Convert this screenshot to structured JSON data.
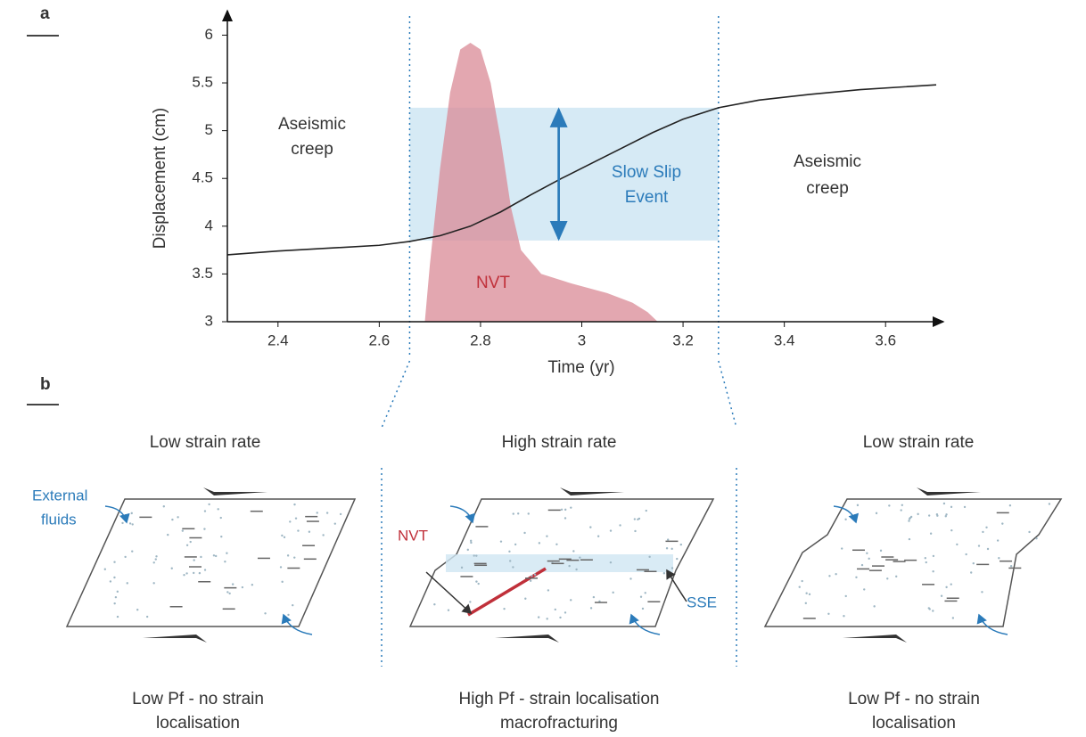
{
  "chart_data": {
    "type": "line",
    "panel_label": "a",
    "x_label": "Time (yr)",
    "y_label": "Displacement (cm)",
    "xlim": [
      2.3,
      3.7
    ],
    "xticks": [
      2.4,
      2.6,
      2.8,
      3,
      3.2,
      3.4,
      3.6
    ],
    "ylim": [
      3,
      6.2
    ],
    "yticks": [
      3,
      3.5,
      4,
      4.5,
      5,
      5.5,
      6
    ],
    "series": [
      {
        "color": "#222222",
        "x": [
          2.3,
          2.4,
          2.5,
          2.6,
          2.66,
          2.72,
          2.78,
          2.84,
          2.9,
          2.96,
          3.02,
          3.08,
          3.14,
          3.2,
          3.27,
          3.35,
          3.45,
          3.55,
          3.7
        ],
        "values": [
          3.7,
          3.74,
          3.77,
          3.8,
          3.84,
          3.9,
          4.0,
          4.15,
          4.33,
          4.5,
          4.66,
          4.82,
          4.98,
          5.12,
          5.24,
          5.32,
          5.38,
          5.43,
          5.48
        ]
      }
    ],
    "nvt": {
      "label": "NVT",
      "color": "#d98a96",
      "x": [
        2.69,
        2.7,
        2.72,
        2.74,
        2.76,
        2.78,
        2.8,
        2.82,
        2.84,
        2.86,
        2.88,
        2.92,
        2.98,
        3.05,
        3.1,
        3.13,
        3.15
      ],
      "values": [
        3,
        3.6,
        4.6,
        5.4,
        5.85,
        5.92,
        5.85,
        5.5,
        4.9,
        4.2,
        3.75,
        3.5,
        3.4,
        3.3,
        3.2,
        3.1,
        3
      ]
    },
    "sse": {
      "label": [
        "Slow Slip",
        "Event"
      ],
      "color": "#cfe6f3",
      "xlim": [
        2.66,
        3.27
      ],
      "ylim": [
        3.85,
        5.24
      ]
    },
    "annotations": {
      "before": [
        "Aseismic",
        "creep"
      ],
      "after": [
        "Aseismic",
        "creep"
      ]
    }
  },
  "panel_b": {
    "label": "b",
    "panels": [
      {
        "title": "Low strain rate",
        "caption": [
          "Low Pf - no strain",
          "localisation"
        ]
      },
      {
        "title": "High strain rate",
        "caption": [
          "High Pf - strain localisation",
          "macrofracturing"
        ]
      },
      {
        "title": "Low strain rate",
        "caption": [
          "Low Pf - no strain",
          "localisation"
        ]
      }
    ],
    "labels": {
      "fluids": [
        "External",
        "fluids"
      ],
      "nvt": "NVT",
      "sse": "SSE"
    }
  }
}
